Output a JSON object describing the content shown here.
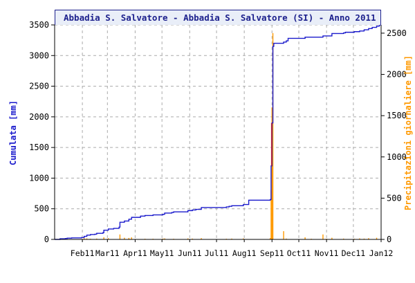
{
  "title": "Abbadia S. Salvatore - Abbadia S. Salvatore (SI) - Anno 2011",
  "colors": {
    "cumulative": "#1a1acc",
    "daily": "#ff9900",
    "daily_spike": "#cc2222",
    "grid": "#aaaaaa",
    "axis": "#000000",
    "frame": "#1b1f8c",
    "title_bg": "#e9eef8"
  },
  "chart_data": {
    "type": "line",
    "title": "Abbadia S. Salvatore - Abbadia S. Salvatore (SI) - Anno 2011",
    "x_tick_labels": [
      "Feb11",
      "Mar11",
      "Apr11",
      "May11",
      "Jun11",
      "Jul11",
      "Aug11",
      "Sep11",
      "Oct11",
      "Nov11",
      "Dec11",
      "Jan12"
    ],
    "x_ticks": [
      31,
      59,
      90,
      120,
      151,
      181,
      212,
      243,
      273,
      304,
      334,
      365
    ],
    "xlim": [
      0,
      365
    ],
    "y_left": {
      "label": "Cumulata [mm]",
      "ticks": [
        0,
        500,
        1000,
        1500,
        2000,
        2500,
        3000,
        3500
      ],
      "lim": [
        0,
        3500
      ]
    },
    "y_right": {
      "label": "Precipitazioni giornaliere [mm]",
      "ticks": [
        0,
        500,
        1000,
        1500,
        2000,
        2500
      ],
      "lim": [
        0,
        2600
      ]
    },
    "grid": true,
    "series": [
      {
        "name": "Cumulata [mm]",
        "axis": "left",
        "kind": "step",
        "x": [
          0,
          6,
          12,
          14,
          19,
          30,
          33,
          36,
          40,
          45,
          47,
          54,
          55,
          60,
          66,
          72,
          73,
          78,
          83,
          86,
          96,
          101,
          110,
          121,
          123,
          131,
          133,
          149,
          154,
          158,
          164,
          192,
          195,
          198,
          211,
          217,
          241,
          242,
          243,
          244,
          245,
          256,
          259,
          261,
          280,
          300,
          310,
          323,
          325,
          335,
          341,
          346,
          351,
          355,
          360,
          363,
          365
        ],
        "y": [
          0,
          10,
          15,
          20,
          25,
          30,
          50,
          70,
          80,
          85,
          100,
          110,
          150,
          170,
          180,
          200,
          280,
          300,
          330,
          360,
          380,
          390,
          400,
          410,
          430,
          440,
          450,
          470,
          480,
          490,
          520,
          530,
          540,
          550,
          570,
          640,
          650,
          1200,
          1900,
          3150,
          3200,
          3220,
          3240,
          3280,
          3300,
          3320,
          3360,
          3370,
          3380,
          3390,
          3400,
          3420,
          3440,
          3460,
          3480,
          3500,
          3500
        ]
      },
      {
        "name": "Precipitazioni giornaliere [mm]",
        "axis": "right",
        "kind": "bars",
        "x": [
          6,
          12,
          30,
          33,
          36,
          40,
          47,
          55,
          60,
          73,
          78,
          83,
          86,
          101,
          110,
          121,
          123,
          133,
          149,
          154,
          164,
          192,
          198,
          211,
          241,
          242,
          243,
          244,
          256,
          259,
          280,
          287,
          300,
          304,
          310,
          323,
          335,
          341,
          346,
          351,
          360
        ],
        "y": [
          8,
          6,
          6,
          15,
          12,
          8,
          10,
          25,
          15,
          60,
          20,
          18,
          25,
          8,
          8,
          10,
          12,
          8,
          12,
          10,
          15,
          8,
          10,
          12,
          15,
          600,
          1600,
          2500,
          100,
          10,
          25,
          8,
          60,
          8,
          20,
          10,
          8,
          12,
          10,
          15,
          20
        ]
      }
    ]
  }
}
